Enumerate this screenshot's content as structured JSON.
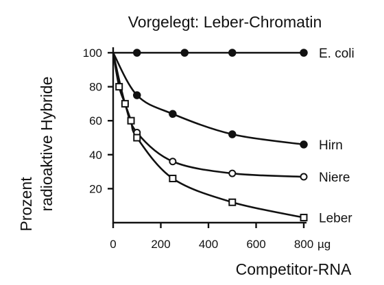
{
  "chart_data": {
    "type": "line",
    "title": "Vorgelegt: Leber-Chromatin",
    "xlabel": "Competitor-RNA",
    "x_unit": "µg",
    "ylabel": [
      "Prozent",
      "radioaktive Hybride"
    ],
    "xlim": [
      0,
      800
    ],
    "ylim": [
      0,
      100
    ],
    "xticks": [
      "0",
      "200",
      "400",
      "600",
      "800"
    ],
    "yticks": [
      "20",
      "40",
      "60",
      "80",
      "100"
    ],
    "grid": false,
    "legend": "labels at right end of each curve",
    "series": [
      {
        "name": "E. coli",
        "marker": "filled-circle",
        "x": [
          0,
          100,
          300,
          500,
          800
        ],
        "y": [
          100,
          100,
          100,
          100,
          100
        ]
      },
      {
        "name": "Hirn",
        "marker": "filled-circle",
        "x": [
          0,
          100,
          250,
          500,
          800
        ],
        "y": [
          100,
          75,
          64,
          52,
          46
        ]
      },
      {
        "name": "Niere",
        "marker": "open-circle",
        "x": [
          0,
          50,
          100,
          250,
          500,
          800
        ],
        "y": [
          100,
          70,
          53,
          36,
          29,
          27
        ]
      },
      {
        "name": "Leber",
        "marker": "open-square",
        "x": [
          0,
          25,
          50,
          75,
          100,
          250,
          500,
          800
        ],
        "y": [
          100,
          80,
          70,
          60,
          50,
          26,
          12,
          3
        ]
      }
    ]
  }
}
